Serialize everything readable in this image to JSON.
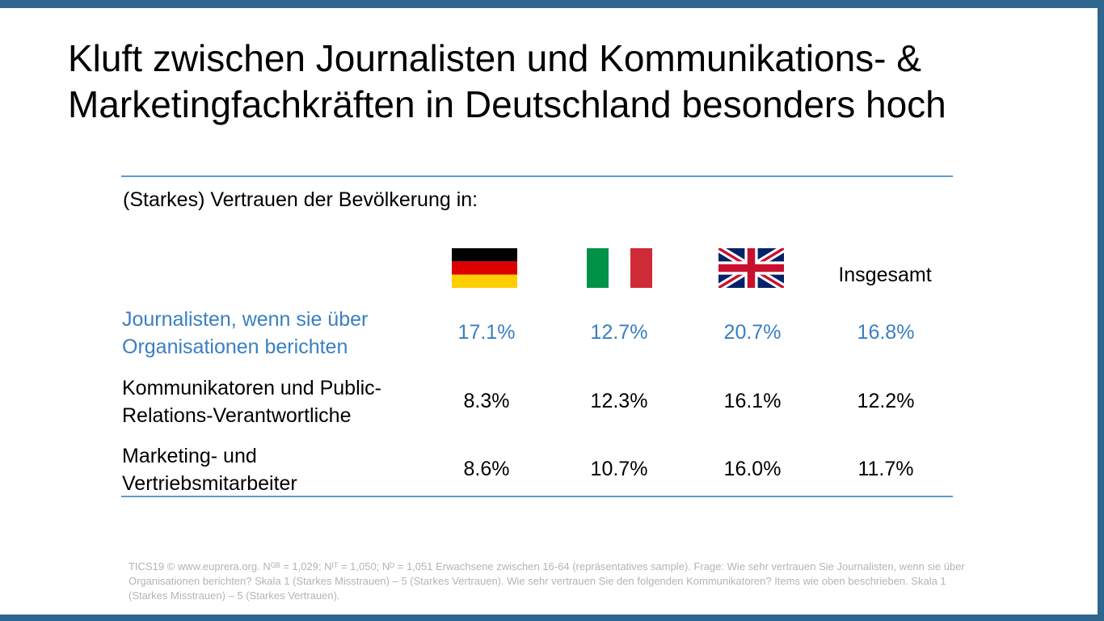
{
  "title": {
    "line1": "Kluft zwischen Journalisten und Kommunikations- &",
    "line2": "Marketingfachkräften in Deutschland besonders hoch"
  },
  "subtitle": "(Starkes) Vertrauen der Bevölkerung in:",
  "columns": {
    "de_flag": "flag-germany",
    "it_flag": "flag-italy",
    "uk_flag": "flag-united-kingdom",
    "overall": "Insgesamt"
  },
  "rows": [
    {
      "label_line1": "Journalisten, wenn sie über",
      "label_line2": "Organisationen berichten",
      "de": "17.1%",
      "it": "12.7%",
      "uk": "20.7%",
      "overall": "16.8%"
    },
    {
      "label_line1": "Kommunikatoren und Public-",
      "label_line2": "Relations-Verantwortliche",
      "de": "8.3%",
      "it": "12.3%",
      "uk": "16.1%",
      "overall": "12.2%"
    },
    {
      "label_line1": "Marketing- und",
      "label_line2": "Vertriebsmitarbeiter",
      "de": "8.6%",
      "it": "10.7%",
      "uk": "16.0%",
      "overall": "11.7%"
    }
  ],
  "footnote": "TICS19 © www.euprera.org. Nᴳᴮ = 1,029; Nᴵᵀ = 1,050; Nᴰ = 1,051 Erwachsene zwischen 16-64 (repräsentatives sample). Frage: Wie sehr vertrauen Sie Journalisten, wenn sie über Organisationen berichten? Skala 1 (Starkes Misstrauen) – 5 (Starkes Vertrauen). Wie sehr vertrauen Sie den folgenden Kommunikatoren? Items wie oben beschrieben. Skala 1 (Starkes Misstrauen) – 5 (Starkes Vertrauen).",
  "colors": {
    "frame": "#2e6690",
    "accent_blue": "#3a7fc2",
    "rule": "#5b9bd5"
  }
}
